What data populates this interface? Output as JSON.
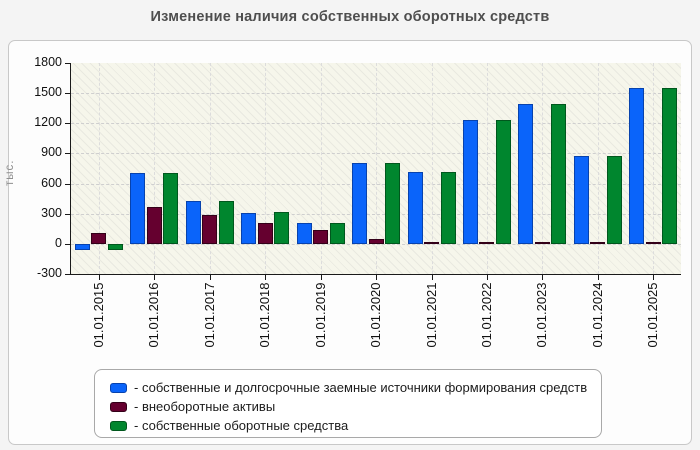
{
  "chart_data": {
    "type": "bar",
    "title": "Изменение наличия собственных оборотных средств",
    "ylabel": "тыс.",
    "ylim": [
      -300,
      1800
    ],
    "ytick_step": 300,
    "yticks": [
      "1800",
      "1500",
      "1200",
      "900",
      "600",
      "300",
      "0",
      "-300"
    ],
    "grid": true,
    "legend_position": "bottom",
    "categories": [
      "01.01.2015",
      "01.01.2016",
      "01.01.2017",
      "01.01.2018",
      "01.01.2019",
      "01.01.2020",
      "01.01.2021",
      "01.01.2022",
      "01.01.2023",
      "01.01.2024",
      "01.01.2025"
    ],
    "series": [
      {
        "key": "sources",
        "name": "собственные и долгосрочные заемные источники формирования средств",
        "color": "#0a64fa",
        "border_color": "#0742ad",
        "values": [
          -60,
          710,
          430,
          310,
          210,
          810,
          720,
          1230,
          1390,
          875,
          1550
        ]
      },
      {
        "key": "noncurrent-assets",
        "name": "внеоборотные активы",
        "color": "#65002f",
        "border_color": "#330018",
        "values": [
          110,
          370,
          290,
          210,
          135,
          50,
          20,
          20,
          20,
          20,
          20
        ]
      },
      {
        "key": "own-working-capital",
        "name": "собственные оборотные средства",
        "color": "#00862e",
        "border_color": "#00571d",
        "values": [
          -60,
          710,
          430,
          315,
          210,
          810,
          720,
          1230,
          1390,
          875,
          1550
        ]
      }
    ]
  },
  "legend": {
    "items": [
      {
        "label": "- собственные и долгосрочные заемные источники формирования средств"
      },
      {
        "label": "- внеоборотные активы"
      },
      {
        "label": "- собственные оборотные средства"
      }
    ]
  }
}
